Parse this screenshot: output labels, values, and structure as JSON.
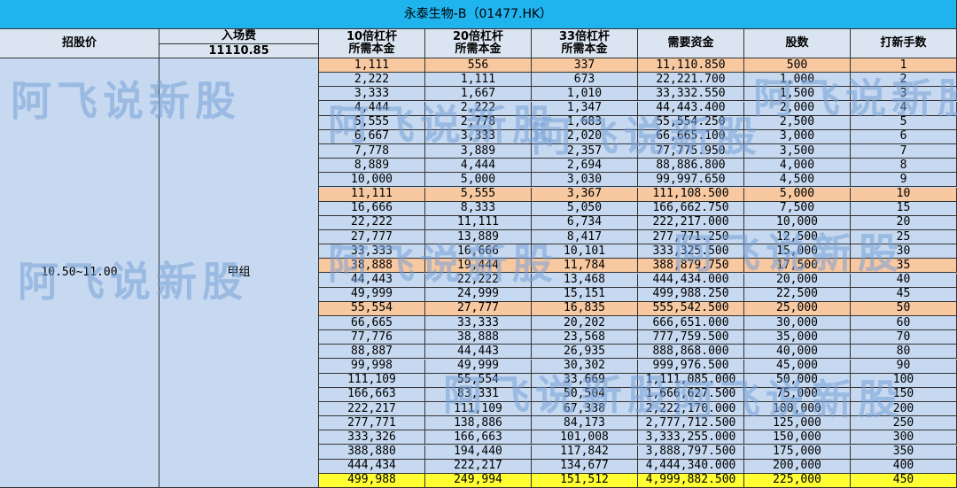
{
  "title": "永泰生物-B（01477.HK）",
  "header": {
    "price": "招股价",
    "entry_fee": {
      "label": "入场费",
      "value": "11110.85"
    },
    "columns": [
      [
        "10倍杠杆",
        "所需本金"
      ],
      [
        "20倍杠杆",
        "所需本金"
      ],
      [
        "33倍杠杆",
        "所需本金"
      ],
      [
        "需要资金"
      ],
      [
        "股数"
      ],
      [
        "打新手数"
      ]
    ]
  },
  "price_range": "10.50~11.00",
  "group": "甲组",
  "watermark": "阿飞说新股",
  "highlights": [
    {
      "row": 0,
      "color": "#f8c8a0"
    },
    {
      "row": 9,
      "color": "#f8c8a0"
    },
    {
      "row": 14,
      "color": "#f8c8a0"
    },
    {
      "row": 17,
      "color": "#f8c8a0"
    },
    {
      "row": 29,
      "color": "#ffff33"
    }
  ],
  "table": {
    "rows": [
      [
        "1,111",
        "556",
        "337",
        "11,110.850",
        "500",
        "1"
      ],
      [
        "2,222",
        "1,111",
        "673",
        "22,221.700",
        "1,000",
        "2"
      ],
      [
        "3,333",
        "1,667",
        "1,010",
        "33,332.550",
        "1,500",
        "3"
      ],
      [
        "4,444",
        "2,222",
        "1,347",
        "44,443.400",
        "2,000",
        "4"
      ],
      [
        "5,555",
        "2,778",
        "1,683",
        "55,554.250",
        "2,500",
        "5"
      ],
      [
        "6,667",
        "3,333",
        "2,020",
        "66,665.100",
        "3,000",
        "6"
      ],
      [
        "7,778",
        "3,889",
        "2,357",
        "77,775.950",
        "3,500",
        "7"
      ],
      [
        "8,889",
        "4,444",
        "2,694",
        "88,886.800",
        "4,000",
        "8"
      ],
      [
        "10,000",
        "5,000",
        "3,030",
        "99,997.650",
        "4,500",
        "9"
      ],
      [
        "11,111",
        "5,555",
        "3,367",
        "111,108.500",
        "5,000",
        "10"
      ],
      [
        "16,666",
        "8,333",
        "5,050",
        "166,662.750",
        "7,500",
        "15"
      ],
      [
        "22,222",
        "11,111",
        "6,734",
        "222,217.000",
        "10,000",
        "20"
      ],
      [
        "27,777",
        "13,889",
        "8,417",
        "277,771.250",
        "12,500",
        "25"
      ],
      [
        "33,333",
        "16,666",
        "10,101",
        "333,325.500",
        "15,000",
        "30"
      ],
      [
        "38,888",
        "19,444",
        "11,784",
        "388,879.750",
        "17,500",
        "35"
      ],
      [
        "44,443",
        "22,222",
        "13,468",
        "444,434.000",
        "20,000",
        "40"
      ],
      [
        "49,999",
        "24,999",
        "15,151",
        "499,988.250",
        "22,500",
        "45"
      ],
      [
        "55,554",
        "27,777",
        "16,835",
        "555,542.500",
        "25,000",
        "50"
      ],
      [
        "66,665",
        "33,333",
        "20,202",
        "666,651.000",
        "30,000",
        "60"
      ],
      [
        "77,776",
        "38,888",
        "23,568",
        "777,759.500",
        "35,000",
        "70"
      ],
      [
        "88,887",
        "44,443",
        "26,935",
        "888,868.000",
        "40,000",
        "80"
      ],
      [
        "99,998",
        "49,999",
        "30,302",
        "999,976.500",
        "45,000",
        "90"
      ],
      [
        "111,109",
        "55,554",
        "33,669",
        "1,111,085.000",
        "50,000",
        "100"
      ],
      [
        "166,663",
        "83,331",
        "50,504",
        "1,666,627.500",
        "75,000",
        "150"
      ],
      [
        "222,217",
        "111,109",
        "67,338",
        "2,222,170.000",
        "100,000",
        "200"
      ],
      [
        "277,771",
        "138,886",
        "84,173",
        "2,777,712.500",
        "125,000",
        "250"
      ],
      [
        "333,326",
        "166,663",
        "101,008",
        "3,333,255.000",
        "150,000",
        "300"
      ],
      [
        "388,880",
        "194,440",
        "117,842",
        "3,888,797.500",
        "175,000",
        "350"
      ],
      [
        "444,434",
        "222,217",
        "134,677",
        "4,444,340.000",
        "200,000",
        "400"
      ],
      [
        "499,988",
        "249,994",
        "151,512",
        "4,999,882.500",
        "225,000",
        "450"
      ]
    ]
  }
}
